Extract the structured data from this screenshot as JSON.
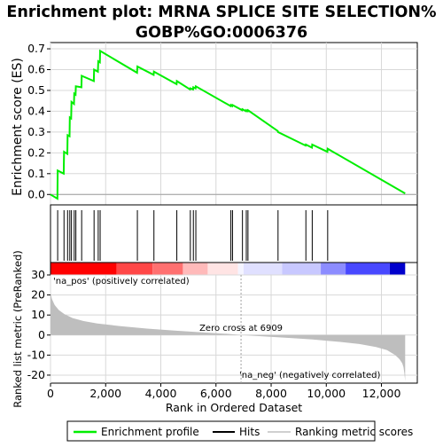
{
  "chart_data": {
    "type": "line",
    "title_line1": "Enrichment plot: MRNA SPLICE SITE SELECTION%",
    "title_line2": "GOBP%GO:0006376",
    "es_ylabel": "Enrichment score (ES)",
    "metric_ylabel": "Ranked list metric (PreRanked)",
    "xlabel": "Rank in Ordered Dataset",
    "xlim": [
      0,
      13300
    ],
    "es_ylim": [
      -0.05,
      0.73
    ],
    "metric_ylim": [
      -24,
      30
    ],
    "x_ticks": [
      0,
      2000,
      4000,
      6000,
      8000,
      10000,
      12000
    ],
    "x_tick_labels": [
      "0",
      "2,000",
      "4,000",
      "6,000",
      "8,000",
      "10,000",
      "12,000"
    ],
    "es_ticks": [
      0.0,
      0.1,
      0.2,
      0.3,
      0.4,
      0.5,
      0.6,
      0.7
    ],
    "es_tick_labels": [
      "0.0",
      "0.1",
      "0.2",
      "0.3",
      "0.4",
      "0.5",
      "0.6",
      "0.7"
    ],
    "metric_ticks": [
      -20,
      -10,
      0,
      10,
      20,
      30
    ],
    "metric_tick_labels": [
      "-20",
      "-10",
      "0",
      "10",
      "20",
      "30"
    ],
    "dataset_size": 12860,
    "zero_cross_label": "Zero cross at 6909",
    "zero_cross": 6909,
    "pos_label": "'na_pos' (positively correlated)",
    "neg_label": "'na_neg' (negatively correlated)",
    "hits": [
      260,
      490,
      620,
      700,
      760,
      860,
      920,
      1130,
      1580,
      1730,
      1800,
      3150,
      3750,
      4580,
      5070,
      5180,
      5270,
      6540,
      6600,
      6960,
      7100,
      7160,
      8250,
      9260,
      9490,
      10050
    ],
    "es_profile": {
      "x": [
        0,
        250,
        260,
        480,
        490,
        610,
        620,
        690,
        700,
        750,
        760,
        850,
        860,
        910,
        920,
        1120,
        1130,
        1570,
        1580,
        1720,
        1730,
        1790,
        1800,
        3140,
        3150,
        3740,
        3750,
        4570,
        4580,
        5060,
        5070,
        5170,
        5180,
        5260,
        5270,
        6530,
        6540,
        6590,
        6600,
        6950,
        6960,
        7090,
        7100,
        7150,
        7160,
        8240,
        8250,
        9250,
        9260,
        9480,
        9490,
        10040,
        10050,
        12860
      ],
      "y": [
        0.0,
        -0.02,
        0.115,
        0.1,
        0.205,
        0.195,
        0.285,
        0.28,
        0.37,
        0.365,
        0.445,
        0.435,
        0.485,
        0.48,
        0.52,
        0.515,
        0.57,
        0.545,
        0.6,
        0.59,
        0.64,
        0.635,
        0.69,
        0.585,
        0.615,
        0.575,
        0.59,
        0.53,
        0.545,
        0.505,
        0.51,
        0.505,
        0.515,
        0.51,
        0.52,
        0.425,
        0.43,
        0.425,
        0.43,
        0.405,
        0.41,
        0.4,
        0.405,
        0.4,
        0.405,
        0.305,
        0.3,
        0.235,
        0.24,
        0.225,
        0.24,
        0.205,
        0.22,
        0.005
      ]
    },
    "metric_profile": {
      "x": [
        0,
        50,
        150,
        300,
        500,
        800,
        1200,
        1700,
        2500,
        3500,
        4500,
        5500,
        6400,
        6909,
        7500,
        8500,
        9500,
        10500,
        11200,
        11800,
        12200,
        12500,
        12650,
        12750,
        12800,
        12830,
        12860
      ],
      "y": [
        21,
        18,
        15,
        12.5,
        10.5,
        8.5,
        7,
        5.8,
        4.5,
        3.2,
        2.2,
        1.3,
        0.6,
        0,
        -0.5,
        -1.3,
        -2.2,
        -3.4,
        -4.5,
        -6,
        -7.5,
        -10,
        -12,
        -14,
        -16,
        -19,
        -23
      ]
    },
    "heat_segments": [
      {
        "from": 0,
        "to": 2400,
        "color": "#ff0000"
      },
      {
        "from": 2400,
        "to": 3700,
        "color": "#ff4747"
      },
      {
        "from": 3700,
        "to": 4800,
        "color": "#ff7070"
      },
      {
        "from": 4800,
        "to": 5700,
        "color": "#ffbaba"
      },
      {
        "from": 5700,
        "to": 6800,
        "color": "#ffe4e4"
      },
      {
        "from": 6800,
        "to": 7000,
        "color": "#f4f4ff"
      },
      {
        "from": 7000,
        "to": 8400,
        "color": "#e0e0ff"
      },
      {
        "from": 8400,
        "to": 9800,
        "color": "#c8c8ff"
      },
      {
        "from": 9800,
        "to": 10700,
        "color": "#8c8cff"
      },
      {
        "from": 10700,
        "to": 12300,
        "color": "#4848ff"
      },
      {
        "from": 12300,
        "to": 12860,
        "color": "#0000cc"
      }
    ],
    "legend": [
      "Enrichment profile",
      "Hits",
      "Ranking metric scores"
    ],
    "colors": {
      "es_line": "#00ee00",
      "hit": "#000000",
      "metric_fill": "#bebebe",
      "grid": "#d8d8d8",
      "pos_label": "#cc0000",
      "neg_label": "#0000cc",
      "zero_line": "#a0a0a0"
    }
  }
}
